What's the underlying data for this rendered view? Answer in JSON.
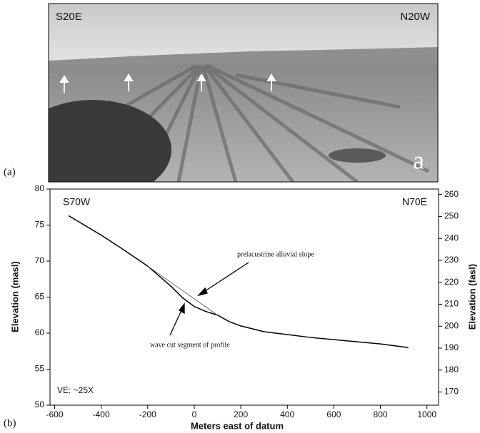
{
  "photo": {
    "panel_label": "(a)",
    "left_label": "S20E",
    "right_label": "N20W",
    "corner_label": "a"
  },
  "chart_data": {
    "type": "line",
    "panel_label": "(b)",
    "x_label": "Meters east of datum",
    "y_label": "Elevation (masl)",
    "y2_label": "Elevation (fasl)",
    "xlim": [
      -620,
      1050
    ],
    "xticks": [
      -600,
      -400,
      -200,
      0,
      200,
      400,
      600,
      800,
      1000
    ],
    "ylim": [
      50,
      80
    ],
    "yticks": [
      50,
      55,
      60,
      65,
      70,
      75,
      80
    ],
    "y2lim": [
      164,
      262.5
    ],
    "y2ticks": [
      170,
      180,
      190,
      200,
      210,
      220,
      230,
      240,
      250,
      260
    ],
    "series": [
      {
        "color": "#000000",
        "x": [
          -540,
          -400,
          -300,
          -200,
          -150,
          -100,
          -50,
          0,
          50,
          100,
          150,
          200,
          300,
          400,
          500,
          600,
          700,
          800,
          920
        ],
        "values": [
          76.3,
          73.6,
          71.5,
          69.3,
          67.9,
          66.5,
          64.9,
          63.7,
          63.0,
          62.5,
          61.6,
          61.0,
          60.2,
          59.8,
          59.4,
          59.1,
          58.8,
          58.5,
          58.0
        ]
      },
      {
        "color": "#555555",
        "x": [
          -200,
          100
        ],
        "values": [
          69.3,
          62.5
        ]
      }
    ],
    "annotations": [
      "S70W",
      "N70E",
      "prelacustrine alluvial slope",
      "wave cut segment of profile",
      "VE: ~25X"
    ]
  }
}
